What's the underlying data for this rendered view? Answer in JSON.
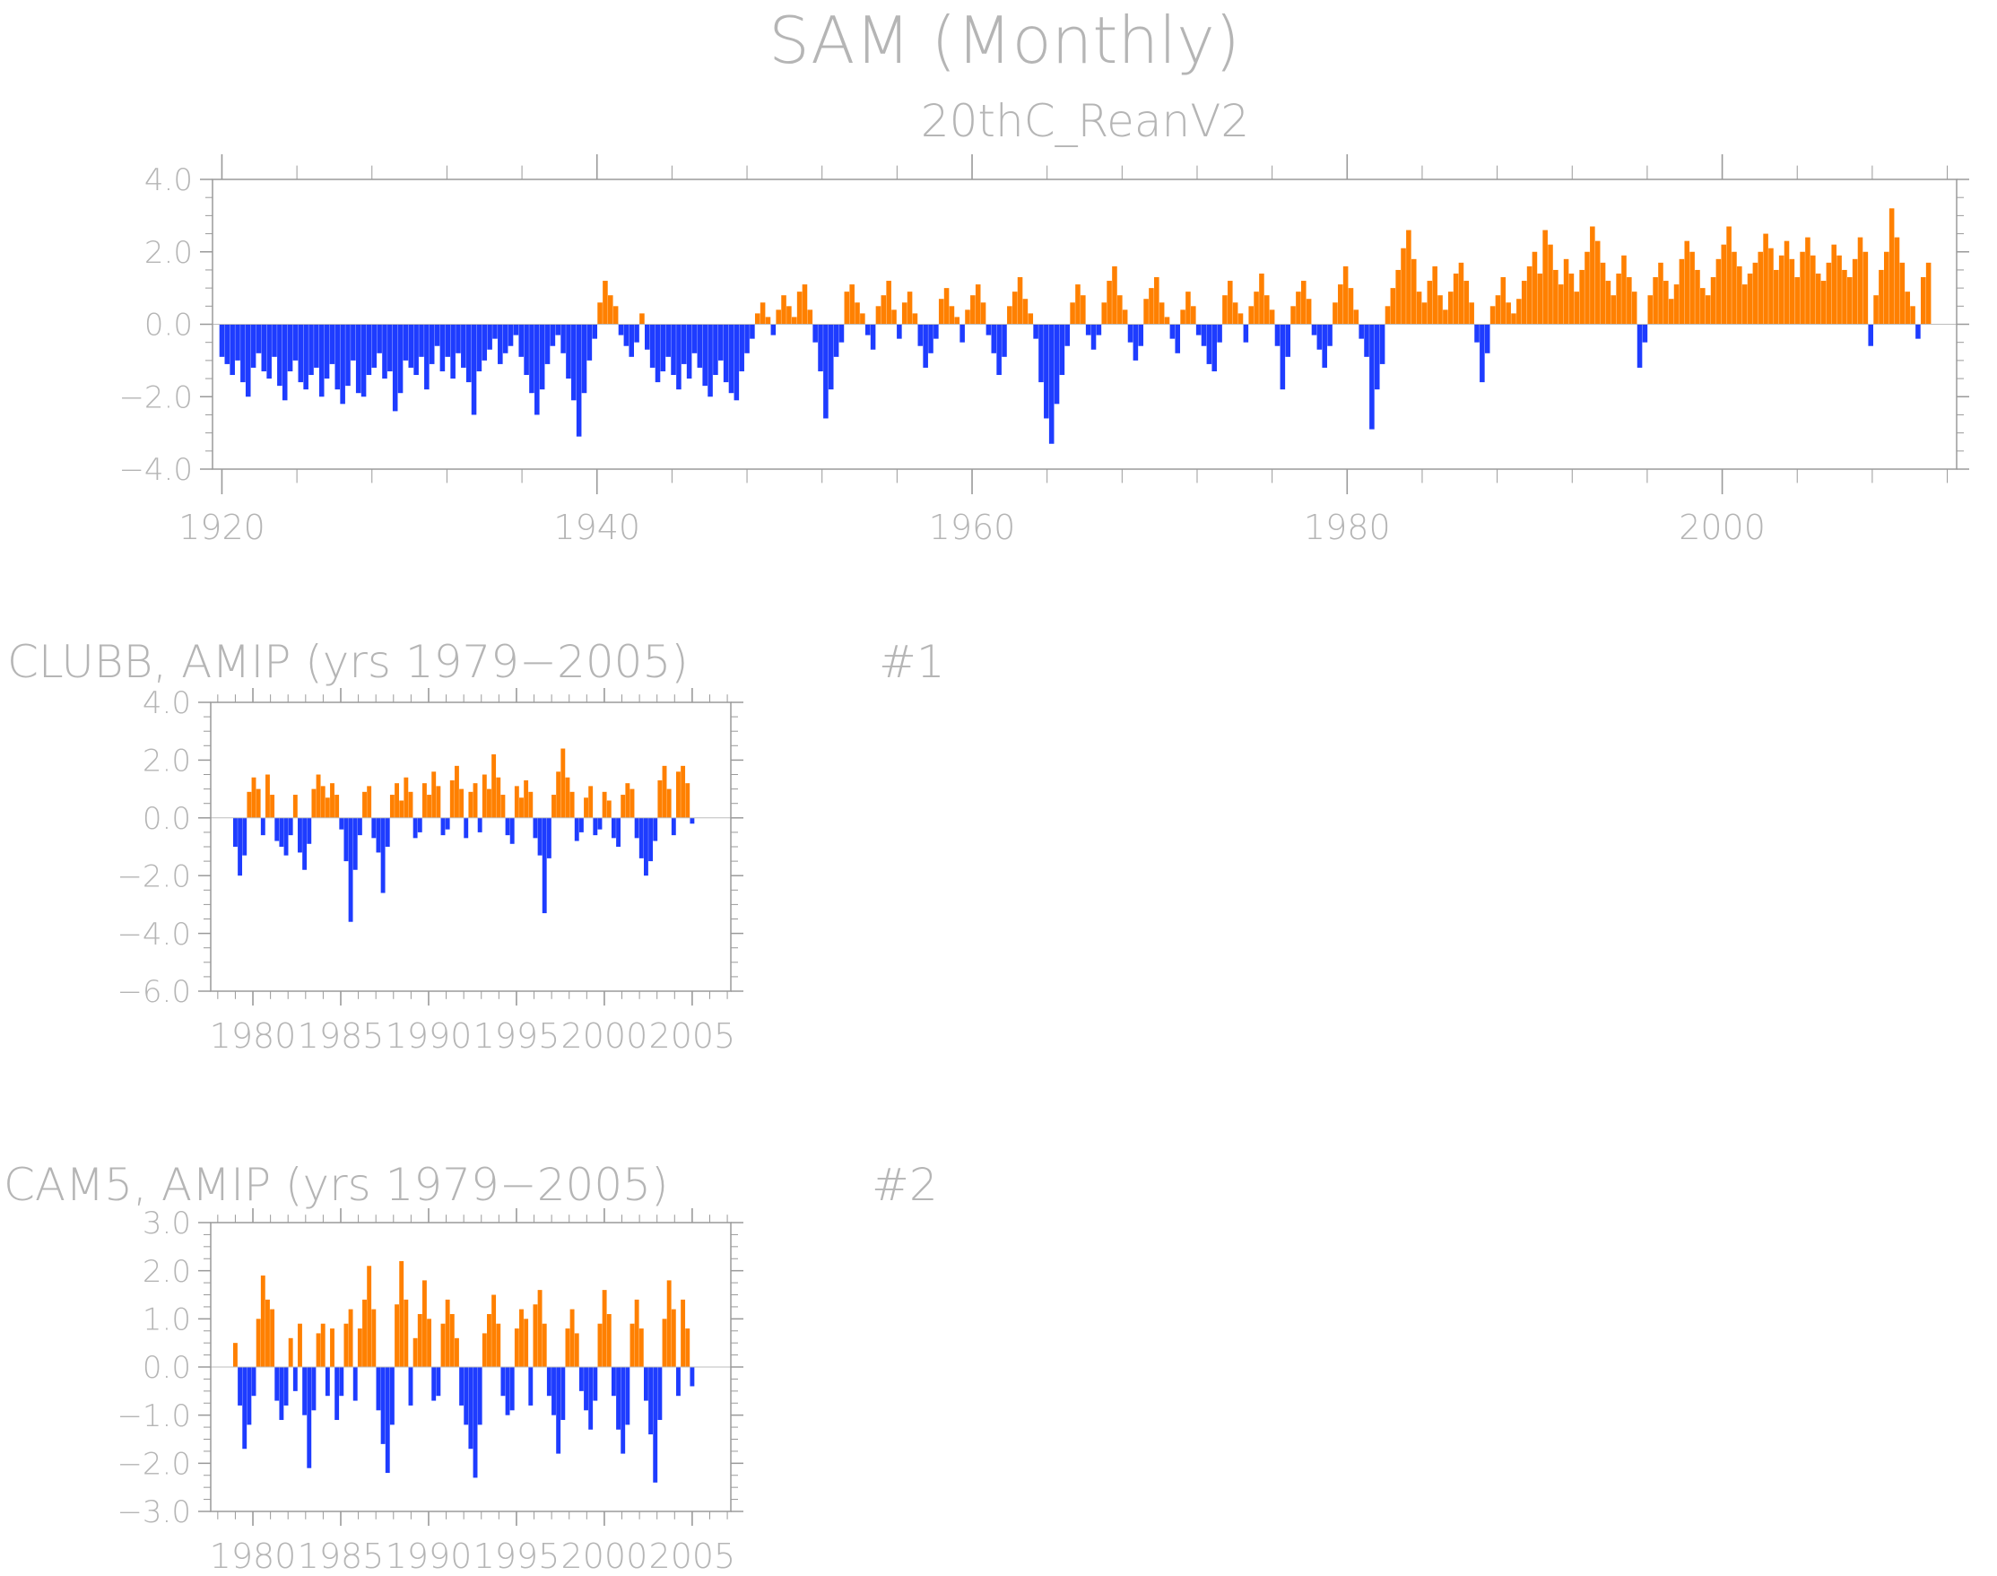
{
  "title": "SAM (Monthly)",
  "colors": {
    "positive": "#ff8000",
    "negative": "#1e3cff",
    "axis": "#9a9a9a",
    "text": "#b5b5b5",
    "zero_line": "#bdbdbd"
  },
  "chart_data": [
    {
      "id": "reanv2",
      "type": "bar",
      "title": "20thC_ReanV2",
      "panel_label": "",
      "xlabel": "",
      "ylabel": "",
      "x_start": 1920.0,
      "x_end": 2011.0,
      "xlim": [
        1919.5,
        2012.5
      ],
      "ylim": [
        -4.0,
        4.0
      ],
      "yticks": [
        4.0,
        2.0,
        0.0,
        -2.0,
        -4.0
      ],
      "ytick_labels": [
        "4.0",
        "2.0",
        "0.0",
        "−2.0",
        "−4.0"
      ],
      "xticks": [
        1920,
        1940,
        1960,
        1980,
        2000
      ],
      "xtick_labels": [
        "1920",
        "1940",
        "1960",
        "1980",
        "2000"
      ],
      "values": [
        -0.9,
        -1.1,
        -1.4,
        -1.0,
        -1.6,
        -2.0,
        -1.2,
        -0.8,
        -1.3,
        -1.5,
        -0.9,
        -1.7,
        -2.1,
        -1.3,
        -1.0,
        -1.6,
        -1.8,
        -1.4,
        -1.2,
        -2.0,
        -1.5,
        -1.1,
        -1.8,
        -2.2,
        -1.7,
        -1.0,
        -1.9,
        -2.0,
        -1.4,
        -1.2,
        -0.8,
        -1.5,
        -1.3,
        -2.4,
        -1.9,
        -1.0,
        -1.2,
        -1.4,
        -0.9,
        -1.8,
        -1.1,
        -0.6,
        -1.3,
        -0.9,
        -1.5,
        -0.8,
        -1.2,
        -1.6,
        -2.5,
        -1.3,
        -1.0,
        -0.7,
        -0.4,
        -1.1,
        -0.8,
        -0.6,
        -0.3,
        -0.9,
        -1.4,
        -1.9,
        -2.5,
        -1.8,
        -1.1,
        -0.6,
        -0.3,
        -0.8,
        -1.5,
        -2.1,
        -3.1,
        -1.9,
        -1.0,
        -0.4,
        0.6,
        1.2,
        0.8,
        0.5,
        -0.3,
        -0.6,
        -0.9,
        -0.5,
        0.3,
        -0.7,
        -1.2,
        -1.6,
        -1.3,
        -0.9,
        -1.4,
        -1.8,
        -1.1,
        -1.5,
        -0.8,
        -1.2,
        -1.7,
        -2.0,
        -1.4,
        -1.0,
        -1.6,
        -1.9,
        -2.1,
        -1.3,
        -0.8,
        -0.4,
        0.3,
        0.6,
        0.2,
        -0.3,
        0.4,
        0.8,
        0.5,
        0.2,
        0.9,
        1.1,
        0.4,
        -0.5,
        -1.3,
        -2.6,
        -1.8,
        -0.9,
        -0.5,
        0.9,
        1.1,
        0.6,
        0.3,
        -0.3,
        -0.7,
        0.5,
        0.8,
        1.2,
        0.4,
        -0.4,
        0.6,
        0.9,
        0.3,
        -0.6,
        -1.2,
        -0.8,
        -0.4,
        0.7,
        1.0,
        0.5,
        0.2,
        -0.5,
        0.4,
        0.8,
        1.1,
        0.6,
        -0.3,
        -0.8,
        -1.4,
        -0.9,
        0.5,
        0.9,
        1.3,
        0.7,
        0.3,
        -0.4,
        -1.6,
        -2.6,
        -3.3,
        -2.2,
        -1.4,
        -0.6,
        0.6,
        1.1,
        0.8,
        -0.3,
        -0.7,
        -0.3,
        0.6,
        1.2,
        1.6,
        0.8,
        0.4,
        -0.5,
        -1.0,
        -0.6,
        0.7,
        1.0,
        1.3,
        0.6,
        0.2,
        -0.4,
        -0.8,
        0.4,
        0.9,
        0.5,
        -0.3,
        -0.6,
        -1.1,
        -1.3,
        -0.5,
        0.8,
        1.2,
        0.6,
        0.3,
        -0.5,
        0.5,
        0.9,
        1.4,
        0.8,
        0.4,
        -0.6,
        -1.8,
        -0.9,
        0.5,
        0.9,
        1.2,
        0.7,
        -0.3,
        -0.7,
        -1.2,
        -0.6,
        0.6,
        1.1,
        1.6,
        1.0,
        0.4,
        -0.4,
        -0.9,
        -2.9,
        -1.8,
        -1.1,
        0.5,
        1.0,
        1.5,
        2.1,
        2.6,
        1.8,
        0.9,
        0.6,
        1.2,
        1.6,
        0.8,
        0.4,
        0.9,
        1.4,
        1.7,
        1.2,
        0.6,
        -0.5,
        -1.6,
        -0.8,
        0.5,
        0.8,
        1.3,
        0.6,
        0.3,
        0.7,
        1.2,
        1.6,
        2.0,
        1.4,
        2.6,
        2.2,
        1.5,
        1.1,
        1.8,
        1.4,
        0.9,
        1.5,
        2.0,
        2.7,
        2.3,
        1.7,
        1.2,
        0.8,
        1.4,
        1.9,
        1.3,
        0.9,
        -1.2,
        -0.5,
        0.8,
        1.3,
        1.7,
        1.2,
        0.7,
        1.1,
        1.8,
        2.3,
        2.0,
        1.5,
        1.0,
        0.8,
        1.3,
        1.8,
        2.2,
        2.7,
        2.0,
        1.6,
        1.1,
        1.4,
        1.7,
        2.0,
        2.5,
        2.1,
        1.5,
        1.9,
        2.3,
        1.8,
        1.3,
        2.0,
        2.4,
        1.9,
        1.4,
        1.2,
        1.7,
        2.2,
        1.9,
        1.5,
        1.3,
        1.8,
        2.4,
        2.0,
        -0.6,
        0.8,
        1.5,
        2.0,
        3.2,
        2.4,
        1.7,
        0.9,
        0.5,
        -0.4,
        1.3,
        1.7
      ]
    },
    {
      "id": "clubb",
      "type": "bar",
      "title": "CLUBB, AMIP (yrs 1979−2005)",
      "panel_label": "#1",
      "xlabel": "",
      "ylabel": "",
      "x_start": 1979.0,
      "x_end": 2005.0,
      "xlim": [
        1977.6,
        2007.2
      ],
      "ylim": [
        -6.0,
        4.0
      ],
      "yticks": [
        4.0,
        2.0,
        0.0,
        -2.0,
        -4.0,
        -6.0
      ],
      "ytick_labels": [
        "4.0",
        "2.0",
        "0.0",
        "−2.0",
        "−4.0",
        "−6.0"
      ],
      "xticks": [
        1980,
        1985,
        1990,
        1995,
        2000,
        2005
      ],
      "xtick_labels": [
        "1980",
        "1985",
        "1990",
        "1995",
        "2000",
        "2005"
      ],
      "values": [
        -1.0,
        -2.0,
        -1.3,
        0.9,
        1.4,
        1.0,
        -0.6,
        1.5,
        0.8,
        -0.8,
        -1.0,
        -1.3,
        -0.6,
        0.8,
        -1.2,
        -1.8,
        -0.9,
        1.0,
        1.5,
        1.1,
        0.7,
        1.2,
        0.8,
        -0.4,
        -1.5,
        -3.6,
        -1.8,
        -0.6,
        0.9,
        1.1,
        -0.7,
        -1.2,
        -2.6,
        -1.0,
        0.8,
        1.2,
        0.6,
        1.4,
        0.9,
        -0.7,
        -0.5,
        1.2,
        0.8,
        1.6,
        1.1,
        -0.6,
        -0.4,
        1.3,
        1.8,
        1.0,
        -0.7,
        0.9,
        1.2,
        -0.5,
        1.5,
        1.0,
        2.2,
        1.4,
        0.8,
        -0.6,
        -0.9,
        1.1,
        0.7,
        1.3,
        0.9,
        -0.7,
        -1.3,
        -3.3,
        -1.4,
        0.8,
        1.6,
        2.4,
        1.4,
        0.9,
        -0.8,
        -0.5,
        0.7,
        1.1,
        -0.6,
        -0.4,
        0.9,
        0.6,
        -0.7,
        -1.0,
        0.8,
        1.2,
        1.0,
        -0.7,
        -1.4,
        -2.0,
        -1.5,
        -0.8,
        1.3,
        1.8,
        1.0,
        -0.6,
        1.6,
        1.8,
        1.2,
        -0.2
      ]
    },
    {
      "id": "cam5",
      "type": "bar",
      "title": "CAM5, AMIP (yrs 1979−2005)",
      "panel_label": "#2",
      "xlabel": "",
      "ylabel": "",
      "x_start": 1979.0,
      "x_end": 2005.0,
      "xlim": [
        1977.6,
        2007.2
      ],
      "ylim": [
        -3.0,
        3.0
      ],
      "yticks": [
        3.0,
        2.0,
        1.0,
        0.0,
        -1.0,
        -2.0,
        -3.0
      ],
      "ytick_labels": [
        "3.0",
        "2.0",
        "1.0",
        "0.0",
        "−1.0",
        "−2.0",
        "−3.0"
      ],
      "xticks": [
        1980,
        1985,
        1990,
        1995,
        2000,
        2005
      ],
      "xtick_labels": [
        "1980",
        "1985",
        "1990",
        "1995",
        "2000",
        "2005"
      ],
      "values": [
        0.5,
        -0.8,
        -1.7,
        -1.2,
        -0.6,
        1.0,
        1.9,
        1.4,
        1.2,
        -0.7,
        -1.1,
        -0.8,
        0.6,
        -0.5,
        0.9,
        -1.0,
        -2.1,
        -0.9,
        0.7,
        0.9,
        -0.6,
        0.8,
        -1.1,
        -0.6,
        0.9,
        1.2,
        -0.7,
        0.8,
        1.4,
        2.1,
        1.2,
        -0.9,
        -1.6,
        -2.2,
        -1.2,
        1.3,
        2.2,
        1.4,
        -0.8,
        0.6,
        1.1,
        1.8,
        1.0,
        -0.7,
        -0.6,
        0.9,
        1.4,
        1.1,
        0.6,
        -0.8,
        -1.2,
        -1.7,
        -2.3,
        -1.2,
        0.7,
        1.1,
        1.5,
        0.9,
        -0.6,
        -1.0,
        -0.9,
        0.8,
        1.2,
        1.0,
        -0.8,
        1.3,
        1.6,
        0.9,
        -0.6,
        -1.0,
        -1.8,
        -1.1,
        0.8,
        1.2,
        0.7,
        -0.5,
        -0.9,
        -1.3,
        -0.7,
        0.9,
        1.6,
        1.1,
        -0.6,
        -1.3,
        -1.8,
        -1.2,
        0.9,
        1.4,
        0.8,
        -0.7,
        -1.4,
        -2.4,
        -1.1,
        1.0,
        1.8,
        1.2,
        -0.6,
        1.4,
        0.8,
        -0.4
      ]
    }
  ]
}
